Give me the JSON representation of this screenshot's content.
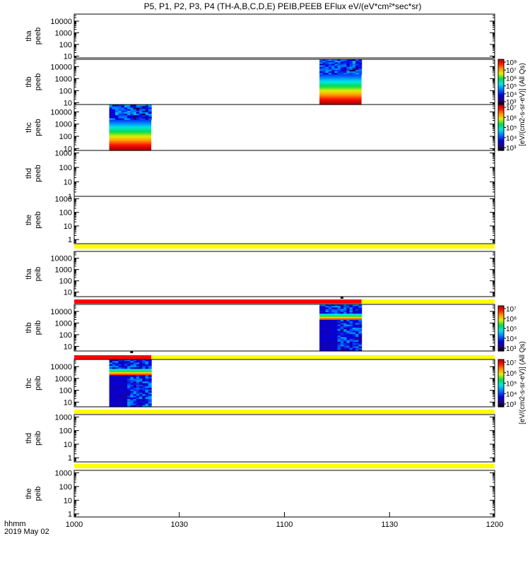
{
  "title": "P5, P1, P2, P3, P4 (TH-A,B,C,D,E) PEIB,PEEB EFlux eV/(eV*cm²*sec*sr)",
  "time_label": "hhmm",
  "date_label": "2019 May 02",
  "colors": {
    "axis": "#000000",
    "band_yellow": "#ffff00",
    "band_red": "#ff0000"
  },
  "chart_data": {
    "type": "heatmap",
    "x_ticks": [
      "1000",
      "1030",
      "1100",
      "1130",
      "1200"
    ],
    "x_range": [
      "10:00",
      "12:00"
    ],
    "y_scale": "log",
    "panels": [
      {
        "label_1": "tha",
        "label_2": "peeb",
        "ylim": [
          7,
          40000
        ],
        "y_ticks": [
          "10",
          "100",
          "1000",
          "10000"
        ],
        "blocks": []
      },
      {
        "label_1": "thb",
        "label_2": "peeb",
        "ylim": [
          7,
          40000
        ],
        "y_ticks": [
          "10",
          "100",
          "1000",
          "10000"
        ],
        "blocks": [
          {
            "start": "11:10",
            "end": "11:22",
            "style": "spectrum"
          }
        ]
      },
      {
        "label_1": "thc",
        "label_2": "peeb",
        "ylim": [
          7,
          40000
        ],
        "y_ticks": [
          "10",
          "100",
          "1000",
          "10000"
        ],
        "blocks": [
          {
            "start": "10:10",
            "end": "10:22",
            "style": "spectrum"
          }
        ]
      },
      {
        "label_1": "thd",
        "label_2": "peeb",
        "ylim": [
          1,
          1500
        ],
        "y_ticks": [
          "1",
          "10",
          "100",
          "1000"
        ],
        "blocks": []
      },
      {
        "label_1": "the",
        "label_2": "peeb",
        "ylim": [
          0.5,
          1500
        ],
        "y_ticks": [
          "1",
          "10",
          "100",
          "1000"
        ],
        "blocks": []
      },
      {
        "label_1": "tha",
        "label_2": "peib",
        "ylim": [
          4,
          40000
        ],
        "y_ticks": [
          "10",
          "100",
          "1000",
          "10000"
        ],
        "blocks": []
      },
      {
        "label_1": "thb",
        "label_2": "peib",
        "ylim": [
          4,
          40000
        ],
        "y_ticks": [
          "10",
          "100",
          "1000",
          "10000"
        ],
        "blocks": [
          {
            "start": "11:10",
            "end": "11:22",
            "style": "ion"
          }
        ]
      },
      {
        "label_1": "thc",
        "label_2": "peib",
        "ylim": [
          4,
          40000
        ],
        "y_ticks": [
          "10",
          "100",
          "1000",
          "10000"
        ],
        "blocks": [
          {
            "start": "10:10",
            "end": "10:22",
            "style": "ion"
          }
        ]
      },
      {
        "label_1": "thd",
        "label_2": "peib",
        "ylim": [
          0.5,
          1500
        ],
        "y_ticks": [
          "1",
          "10",
          "100",
          "1000"
        ],
        "blocks": []
      },
      {
        "label_1": "the",
        "label_2": "peib",
        "ylim": [
          0.6,
          1500
        ],
        "y_ticks": [
          "1",
          "10",
          "100",
          "1000"
        ],
        "blocks": []
      }
    ],
    "colorbars": [
      {
        "tick_labels": [
          "10⁸",
          "10⁷",
          "10⁶",
          "10⁵",
          "10⁴",
          "10³"
        ],
        "label": "[eV/(cm2-s-sr-eV)] (All Qs)"
      },
      {
        "tick_labels": [
          "10⁷",
          "10⁶",
          "10⁵",
          "10⁴",
          "10³"
        ],
        "label": "[eV/(cm2-s-sr-eV)] (All Qs)"
      },
      {
        "tick_labels": [
          "10⁷",
          "10⁶",
          "10⁵",
          "10⁴",
          "10³"
        ],
        "label": "[eV/(cm2-s-sr-eV)] (All Qs)"
      },
      {
        "tick_labels": [
          "10⁷",
          "10⁶",
          "10⁵",
          "10⁴",
          "10³"
        ],
        "label": "[eV/(cm2-s-sr-eV)] (All Qs)"
      }
    ]
  }
}
